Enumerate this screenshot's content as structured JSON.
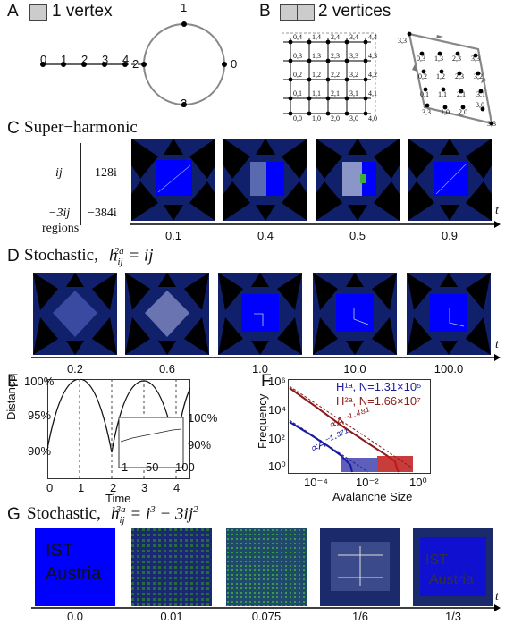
{
  "panelA": {
    "letter": "A",
    "title": "1 vertex",
    "chain": [
      "0",
      "1",
      "2",
      "3",
      "4"
    ],
    "circle": {
      "top": "1",
      "left": "2",
      "right": "0",
      "bottom": "3"
    }
  },
  "panelB": {
    "letter": "B",
    "title": "2 vertices",
    "grid": [
      [
        "0,4",
        "1,4",
        "2,4",
        "3,4",
        "4,4"
      ],
      [
        "0,3",
        "1,3",
        "2,3",
        "3,3",
        "4,3"
      ],
      [
        "0,2",
        "1,2",
        "2,2",
        "3,2",
        "4,2"
      ],
      [
        "0,1",
        "1,1",
        "2,1",
        "3,1",
        "4,1"
      ],
      [
        "0,0",
        "1,0",
        "2,0",
        "3,0",
        "4,0"
      ]
    ],
    "torus_corner_tl": "3,3",
    "torus_corner_br": "3,3",
    "torus": [
      [
        "0,3",
        "1,3",
        "2,3",
        "3,3"
      ],
      [
        "0,2",
        "1,2",
        "2,3",
        "3,2"
      ],
      [
        "0,1",
        "1,1",
        "2,1",
        "3,1"
      ],
      [
        "3,3",
        "1,0",
        "2,0",
        "3,0"
      ]
    ]
  },
  "panelC": {
    "letter": "C",
    "title": "Super−harmonic",
    "table": {
      "r1c1": "ij",
      "r1c2": "128i",
      "r2c1": "−3ij",
      "r2c2": "−384i",
      "footer": "regions"
    },
    "ticks": [
      "0.1",
      "0.4",
      "0.5",
      "0.9"
    ],
    "axis": "t"
  },
  "panelD": {
    "letter": "D",
    "title_prefix": "Stochastic,",
    "formula": "h_ij^2a = ij",
    "ticks": [
      "0.2",
      "0.6",
      "1.0",
      "10.0",
      "100.0"
    ],
    "axis": "t"
  },
  "panelE": {
    "letter": "E",
    "ylabel": "Distance",
    "xlabel": "Time",
    "yticks": [
      "100%",
      "95%",
      "90%"
    ],
    "xticks": [
      "0",
      "1",
      "2",
      "3",
      "4"
    ],
    "inset": {
      "yticks": [
        "100%",
        "90%"
      ],
      "xticks": [
        "1",
        "50",
        "100"
      ]
    }
  },
  "panelF": {
    "letter": "F",
    "ylabel": "Frequency",
    "xlabel": "Avalanche Size",
    "yticks": [
      "10⁶",
      "10⁴",
      "10²",
      "10⁰"
    ],
    "xticks": [
      "10⁻⁴",
      "10⁻²",
      "10⁰"
    ],
    "legend": [
      {
        "name": "H¹ᵃ, N=1.31×10⁵",
        "color": "#1a1a9e"
      },
      {
        "name": "H²ᵃ, N=1.66×10⁷",
        "color": "#8b1a1a"
      }
    ],
    "fits": [
      {
        "label": "∝A⁻¹·⁴⁸¹",
        "color": "#8b1a1a"
      },
      {
        "label": "∝A⁻¹·³⁷¹",
        "color": "#1a1a9e"
      }
    ]
  },
  "panelG": {
    "letter": "G",
    "title_prefix": "Stochastic,",
    "formula": "h_ij^3a = i³ − 3ij²",
    "first_image_text": [
      "IST",
      "Austria"
    ],
    "ticks": [
      "0.0",
      "0.01",
      "0.075",
      "1/6",
      "1/3"
    ],
    "axis": "t"
  },
  "colors": {
    "blue": "#0000ff",
    "dark": "#000",
    "green": "#2a8a2a"
  }
}
